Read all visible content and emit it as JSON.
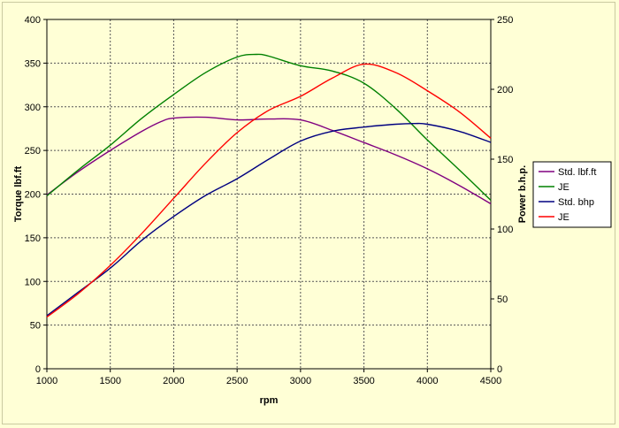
{
  "chart_data": {
    "type": "line",
    "xlabel": "rpm",
    "ylabel_left": "Torque lbf.ft",
    "ylabel_right": "Power b.h.p.",
    "x_range": [
      1000,
      4500
    ],
    "x_ticks": [
      1000,
      1500,
      2000,
      2500,
      3000,
      3500,
      4000,
      4500
    ],
    "y_left_range": [
      0,
      400
    ],
    "y_left_ticks": [
      0,
      50,
      100,
      150,
      200,
      250,
      300,
      350,
      400
    ],
    "y_right_range": [
      0,
      250
    ],
    "y_right_ticks": [
      0,
      50,
      100,
      150,
      200,
      250
    ],
    "grid": true,
    "legend_position": "right",
    "series": [
      {
        "name": "Std. lbf.ft",
        "axis": "left",
        "color": "#800080",
        "points": [
          [
            1000,
            199
          ],
          [
            1250,
            226
          ],
          [
            1500,
            250
          ],
          [
            1750,
            272
          ],
          [
            1900,
            283
          ],
          [
            2000,
            287
          ],
          [
            2250,
            288
          ],
          [
            2500,
            285
          ],
          [
            2750,
            286
          ],
          [
            3000,
            285
          ],
          [
            3250,
            273
          ],
          [
            3500,
            259
          ],
          [
            3750,
            245
          ],
          [
            4000,
            229
          ],
          [
            4250,
            210
          ],
          [
            4500,
            189
          ]
        ]
      },
      {
        "name": "JE",
        "axis": "left",
        "color": "#008000",
        "points": [
          [
            1000,
            198
          ],
          [
            1250,
            228
          ],
          [
            1500,
            256
          ],
          [
            1750,
            287
          ],
          [
            2000,
            314
          ],
          [
            2250,
            339
          ],
          [
            2500,
            357
          ],
          [
            2650,
            360
          ],
          [
            2750,
            358
          ],
          [
            3000,
            347
          ],
          [
            3250,
            341
          ],
          [
            3500,
            327
          ],
          [
            3750,
            298
          ],
          [
            4000,
            262
          ],
          [
            4250,
            228
          ],
          [
            4500,
            193
          ]
        ]
      },
      {
        "name": "Std. bhp",
        "axis": "right",
        "color": "#000080",
        "points": [
          [
            1000,
            38
          ],
          [
            1250,
            55
          ],
          [
            1500,
            72
          ],
          [
            1750,
            92
          ],
          [
            2000,
            109
          ],
          [
            2250,
            124
          ],
          [
            2500,
            136
          ],
          [
            2750,
            150
          ],
          [
            3000,
            163
          ],
          [
            3250,
            170
          ],
          [
            3500,
            173
          ],
          [
            3750,
            175
          ],
          [
            3900,
            175.5
          ],
          [
            4000,
            175
          ],
          [
            4250,
            170
          ],
          [
            4500,
            162
          ]
        ]
      },
      {
        "name": "JE",
        "axis": "right",
        "color": "#ff0000",
        "points": [
          [
            1000,
            37
          ],
          [
            1250,
            54
          ],
          [
            1500,
            74
          ],
          [
            1750,
            97
          ],
          [
            2000,
            122
          ],
          [
            2250,
            147
          ],
          [
            2500,
            169
          ],
          [
            2750,
            185
          ],
          [
            3000,
            195
          ],
          [
            3250,
            208
          ],
          [
            3500,
            218
          ],
          [
            3750,
            212
          ],
          [
            4000,
            199
          ],
          [
            4250,
            184
          ],
          [
            4500,
            165
          ]
        ]
      }
    ]
  }
}
